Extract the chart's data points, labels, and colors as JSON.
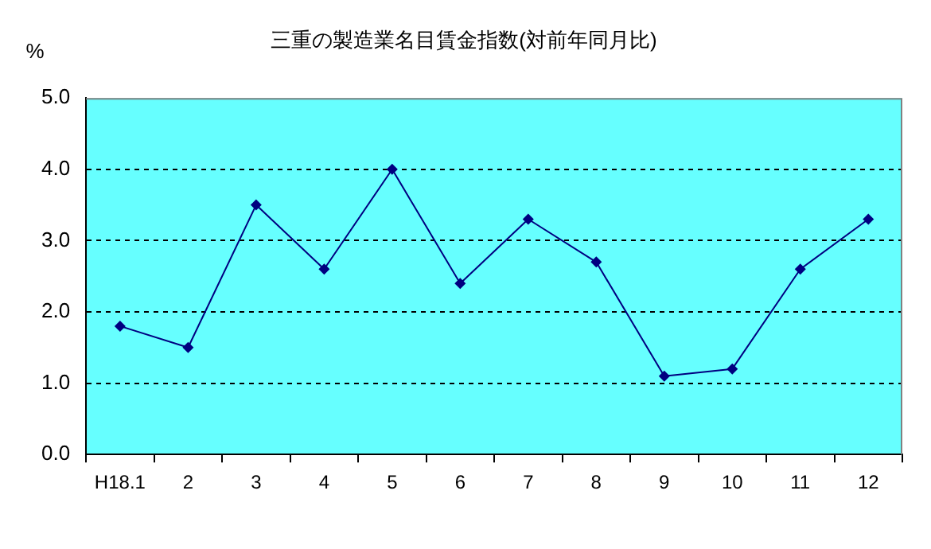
{
  "chart_data": {
    "type": "line",
    "title": "三重の製造業名目賃金指数(対前年同月比)",
    "ylabel": "%",
    "categories": [
      "H18.1",
      "2",
      "3",
      "4",
      "5",
      "6",
      "7",
      "8",
      "9",
      "10",
      "11",
      "12"
    ],
    "series": [
      {
        "color": "#000080",
        "values": [
          1.8,
          1.5,
          3.5,
          2.6,
          4.0,
          2.4,
          3.3,
          2.7,
          1.1,
          1.2,
          2.6,
          3.3
        ]
      }
    ],
    "ylim": [
      0,
      5
    ],
    "yticks": [
      {
        "value": 0,
        "label": "0.0"
      },
      {
        "value": 1,
        "label": "1.0"
      },
      {
        "value": 2,
        "label": "2.0"
      },
      {
        "value": 3,
        "label": "3.0"
      },
      {
        "value": 4,
        "label": "4.0"
      },
      {
        "value": 5,
        "label": "5.0"
      }
    ],
    "grid": "y",
    "legend": false,
    "marker": "diamond",
    "line_style": "solid"
  }
}
